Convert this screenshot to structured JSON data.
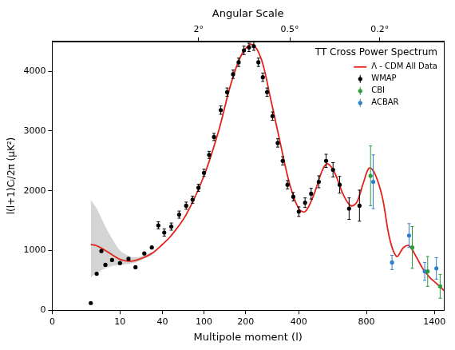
{
  "chart_data": {
    "type": "scatter",
    "legend_title": "TT Cross Power Spectrum",
    "xlabel": "Multipole moment (l)",
    "ylabel": "l(l+1)Cₗ/2π (μK²)",
    "x2label": "Angular Scale",
    "xlim": [
      0,
      1500
    ],
    "xticks": [
      0,
      10,
      40,
      100,
      200,
      400,
      800,
      1400
    ],
    "x2ticks": [
      {
        "value": 90,
        "label": "2°"
      },
      {
        "value": 360,
        "label": "0.5°"
      },
      {
        "value": 900,
        "label": "0.2°"
      }
    ],
    "ylim": [
      0,
      4500
    ],
    "yticks": [
      0,
      1000,
      2000,
      3000,
      4000
    ],
    "grid": false,
    "legend": "upper right",
    "series": [
      {
        "name": "Λ - CDM All Data",
        "type": "line",
        "marker": "none",
        "line_style": "solid",
        "color": "#e2231a",
        "x": [
          2,
          3,
          5,
          7,
          10,
          15,
          20,
          30,
          40,
          50,
          70,
          100,
          130,
          160,
          190,
          220,
          250,
          280,
          320,
          360,
          400,
          430,
          470,
          520,
          550,
          590,
          640,
          690,
          730,
          780,
          820,
          860,
          920,
          980,
          1040,
          1100,
          1150,
          1200,
          1280,
          1350,
          1420,
          1500
        ],
        "values": [
          1100,
          1080,
          1000,
          930,
          850,
          820,
          850,
          950,
          1100,
          1250,
          1600,
          2250,
          3000,
          3800,
          4300,
          4450,
          4200,
          3600,
          2800,
          2100,
          1700,
          1650,
          1900,
          2350,
          2450,
          2300,
          1950,
          1750,
          1800,
          2150,
          2380,
          2300,
          1900,
          1200,
          900,
          1050,
          1080,
          950,
          700,
          550,
          450,
          330
        ],
        "band_x": [
          2,
          3,
          5,
          7,
          10,
          15,
          20,
          30
        ],
        "band_lower": [
          550,
          620,
          700,
          740,
          760,
          780,
          820,
          920
        ],
        "band_upper": [
          1850,
          1700,
          1400,
          1200,
          1000,
          900,
          890,
          980
        ]
      },
      {
        "name": "WMAP",
        "type": "scatter",
        "marker": "circle",
        "color": "#000000",
        "x": [
          2,
          3,
          4,
          5,
          7,
          10,
          14,
          18,
          24,
          30,
          36,
          42,
          50,
          60,
          70,
          80,
          90,
          100,
          110,
          120,
          135,
          150,
          165,
          180,
          195,
          210,
          225,
          240,
          255,
          270,
          290,
          310,
          330,
          350,
          375,
          400,
          430,
          460,
          500,
          540,
          580,
          620,
          680,
          750
        ],
        "values": [
          120,
          610,
          990,
          760,
          840,
          790,
          860,
          720,
          950,
          1050,
          1420,
          1300,
          1400,
          1600,
          1750,
          1850,
          2050,
          2300,
          2600,
          2900,
          3350,
          3650,
          3950,
          4150,
          4350,
          4400,
          4420,
          4150,
          3900,
          3650,
          3250,
          2800,
          2500,
          2100,
          1900,
          1650,
          1800,
          1950,
          2150,
          2500,
          2350,
          2100,
          1700,
          1750
        ],
        "errors": [
          null,
          null,
          null,
          null,
          null,
          null,
          null,
          null,
          null,
          null,
          60,
          60,
          60,
          60,
          60,
          60,
          60,
          60,
          60,
          60,
          70,
          70,
          70,
          70,
          70,
          70,
          70,
          70,
          70,
          70,
          70,
          70,
          70,
          70,
          70,
          80,
          80,
          90,
          100,
          110,
          120,
          140,
          180,
          260
        ]
      },
      {
        "name": "CBI",
        "type": "scatter",
        "marker": "circle",
        "color": "#2e9b3a",
        "x": [
          830,
          1180,
          1330,
          1460
        ],
        "values": [
          2250,
          1050,
          650,
          400
        ],
        "errors": [
          500,
          350,
          250,
          200
        ]
      },
      {
        "name": "ACBAR",
        "type": "scatter",
        "marker": "circle",
        "color": "#2f7fd0",
        "x": [
          850,
          1000,
          1150,
          1300,
          1420
        ],
        "values": [
          2150,
          800,
          1250,
          650,
          700
        ],
        "errors": [
          450,
          120,
          200,
          150,
          180
        ]
      }
    ]
  }
}
